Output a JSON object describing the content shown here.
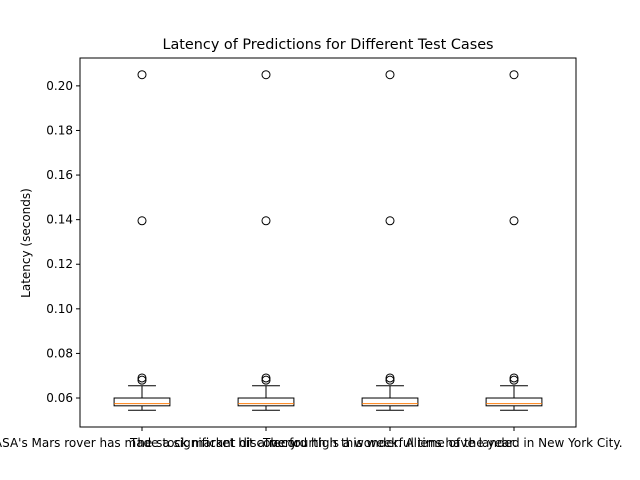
{
  "chart_data": {
    "type": "box",
    "title": "Latency of Predictions for Different Test Cases",
    "xlabel": "",
    "ylabel": "Latency (seconds)",
    "ylim": [
      0.047,
      0.2125
    ],
    "yticks": [
      0.06,
      0.08,
      0.1,
      0.12,
      0.14,
      0.16,
      0.18,
      0.2
    ],
    "ytick_labels": [
      "0.06",
      "0.08",
      "0.10",
      "0.12",
      "0.14",
      "0.16",
      "0.18",
      "0.20"
    ],
    "grid": false,
    "categories": [
      "NASA's Mars rover has made a significant discovery.",
      "The stock market hit a record high this week.",
      "The fourth is a wonderful time of the year.",
      "Aliens have landed in New York City."
    ],
    "boxes": [
      {
        "whislo": 0.0545,
        "q1": 0.0565,
        "med": 0.0575,
        "q3": 0.06,
        "whishi": 0.0655,
        "fliers": [
          0.068,
          0.069,
          0.1395,
          0.205
        ]
      },
      {
        "whislo": 0.0545,
        "q1": 0.0565,
        "med": 0.0575,
        "q3": 0.06,
        "whishi": 0.0655,
        "fliers": [
          0.068,
          0.069,
          0.1395,
          0.205
        ]
      },
      {
        "whislo": 0.0545,
        "q1": 0.0565,
        "med": 0.0575,
        "q3": 0.06,
        "whishi": 0.0655,
        "fliers": [
          0.068,
          0.069,
          0.1395,
          0.205
        ]
      },
      {
        "whislo": 0.0545,
        "q1": 0.0565,
        "med": 0.0575,
        "q3": 0.06,
        "whishi": 0.0655,
        "fliers": [
          0.068,
          0.069,
          0.1395,
          0.205
        ]
      }
    ],
    "colors": {
      "median": "#ff7f0e",
      "box": "#000000"
    }
  }
}
